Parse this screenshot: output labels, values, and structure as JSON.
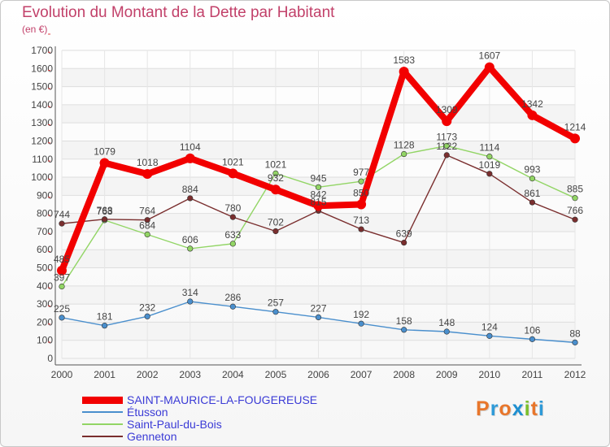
{
  "header": {
    "title": "Evolution du Montant de la Dette par Habitant",
    "unit": "(en €)"
  },
  "logo": {
    "text": "Proxiti",
    "colors": [
      "#e8762b",
      "#2e9ad8",
      "#e8762b",
      "#1e8fd0",
      "#7abf2a",
      "#e8762b",
      "#2e9ad8"
    ]
  },
  "chart_data": {
    "type": "line",
    "x": [
      "2000",
      "2001",
      "2002",
      "2003",
      "2004",
      "2005",
      "2006",
      "2007",
      "2008",
      "2009",
      "2010",
      "2011",
      "2012"
    ],
    "ylim": [
      0,
      1700
    ],
    "yticks": [
      0,
      100,
      200,
      300,
      400,
      500,
      600,
      700,
      800,
      900,
      1000,
      1100,
      1200,
      1300,
      1400,
      1500,
      1600,
      1700
    ],
    "grid": true,
    "legend_position": "bottom-left",
    "series": [
      {
        "name": "SAINT-MAURICE-LA-FOUGEREUSE",
        "color": "#f20000",
        "values": [
          485,
          1079,
          1018,
          1104,
          1021,
          932,
          842,
          850,
          1583,
          1309,
          1607,
          1342,
          1214
        ],
        "labels": [
          "485",
          "1079",
          "1018",
          "1104",
          "1021",
          "932",
          "842",
          "850",
          "1583",
          "1309",
          "1607",
          "1342",
          "1214"
        ]
      },
      {
        "name": "Étusson",
        "color": "#4a8fcd",
        "values": [
          225,
          181,
          232,
          314,
          286,
          257,
          227,
          192,
          158,
          148,
          124,
          106,
          88
        ],
        "labels": [
          "225",
          "181",
          "232",
          "314",
          "286",
          "257",
          "227",
          "192",
          "158",
          "148",
          "124",
          "106",
          "88"
        ]
      },
      {
        "name": "Saint-Paul-du-Bois",
        "color": "#92d565",
        "values": [
          397,
          763,
          684,
          606,
          633,
          1021,
          945,
          977,
          1128,
          1173,
          1114,
          993,
          885
        ],
        "labels": [
          "397",
          "763",
          "684",
          "606",
          "633",
          "1021",
          "945",
          "977",
          "1128",
          "1173",
          "1114",
          "993",
          "885"
        ]
      },
      {
        "name": "Genneton",
        "color": "#7a2e2e",
        "values": [
          744,
          768,
          764,
          884,
          780,
          702,
          815,
          713,
          639,
          1122,
          1019,
          861,
          766
        ],
        "labels": [
          "744",
          "768",
          "764",
          "884",
          "780",
          "702",
          "815",
          "713",
          "639",
          "1122",
          "1019",
          "861",
          "766"
        ]
      }
    ]
  }
}
